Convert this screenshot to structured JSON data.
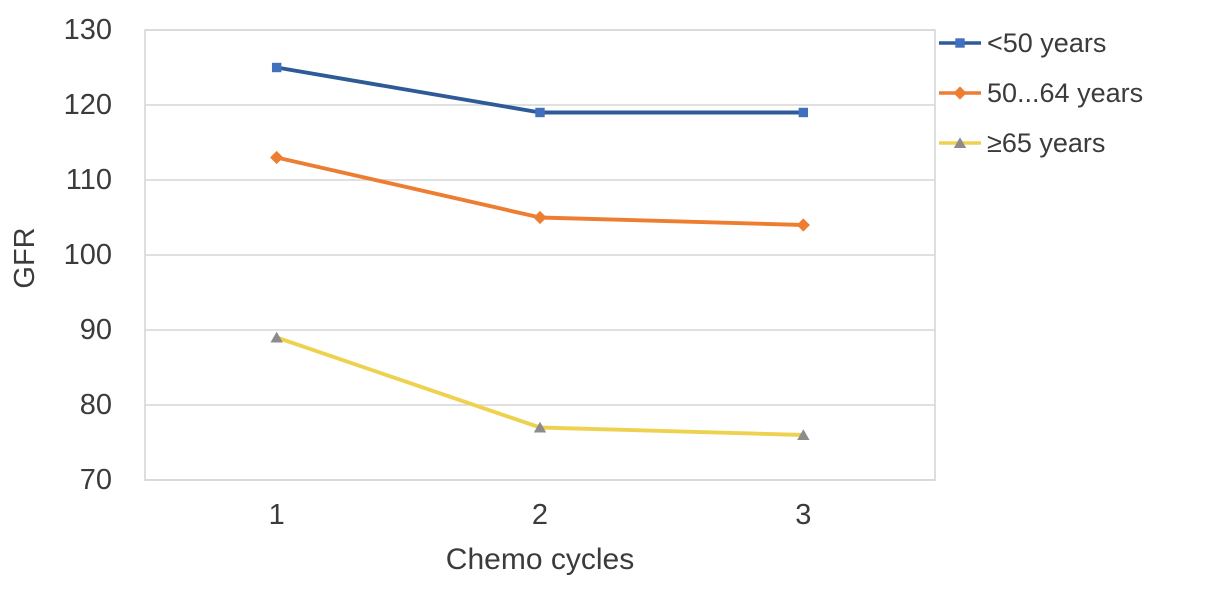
{
  "chart_data": {
    "type": "line",
    "title": "",
    "ylabel": "GFR",
    "xlabel": "Chemo cycles",
    "categories": [
      "1",
      "2",
      "3"
    ],
    "yticks": [
      70,
      80,
      90,
      100,
      110,
      120,
      130
    ],
    "ylim": [
      70,
      130
    ],
    "grid": true,
    "legend_position": "right",
    "series": [
      {
        "name": "<50 years",
        "values": [
          125,
          119,
          119
        ],
        "line_color": "#2E5B97",
        "marker": "square",
        "marker_color": "#4170BC"
      },
      {
        "name": "50...64 years",
        "values": [
          113,
          105,
          104
        ],
        "line_color": "#ED7D31",
        "marker": "diamond",
        "marker_color": "#ED7D31"
      },
      {
        "name": "≥65 years",
        "values": [
          89,
          77,
          76
        ],
        "line_color": "#EFD150",
        "marker": "triangle",
        "marker_color": "#8C8C8C"
      }
    ],
    "colors": {
      "grid": "#D6D6D6",
      "text": "#3B3B3B",
      "background": "#FFFFFF"
    }
  }
}
